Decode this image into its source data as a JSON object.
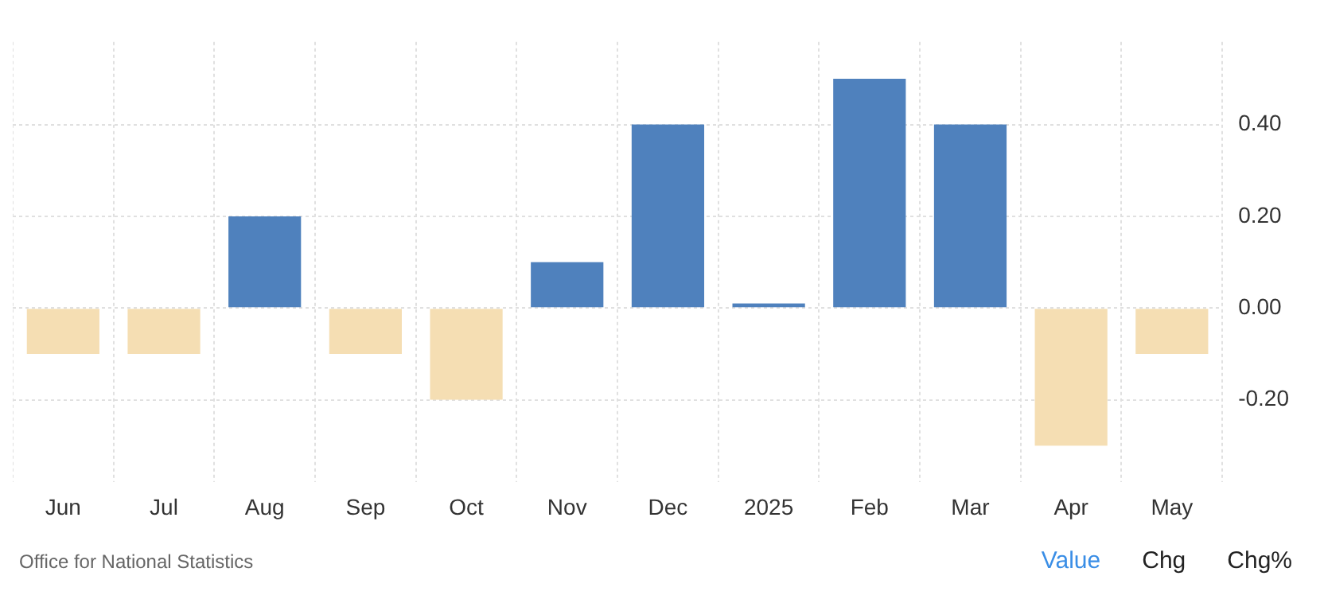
{
  "chart_data": {
    "type": "bar",
    "categories": [
      "Jun",
      "Jul",
      "Aug",
      "Sep",
      "Oct",
      "Nov",
      "Dec",
      "2025",
      "Feb",
      "Mar",
      "Apr",
      "May"
    ],
    "values": [
      -0.1,
      -0.1,
      0.2,
      -0.1,
      -0.2,
      0.1,
      0.4,
      0.01,
      0.5,
      0.4,
      -0.3,
      -0.1
    ],
    "colors": [
      "#f5deb3",
      "#f5deb3",
      "#4f81bd",
      "#f5deb3",
      "#f5deb3",
      "#4f81bd",
      "#4f81bd",
      "#4f81bd",
      "#4f81bd",
      "#4f81bd",
      "#f5deb3",
      "#f5deb3"
    ],
    "ylim": [
      -0.38,
      0.58
    ],
    "yticks": [
      {
        "value": -0.2,
        "label": "-0.20"
      },
      {
        "value": 0,
        "label": "0.00"
      },
      {
        "value": 0.2,
        "label": "0.20"
      },
      {
        "value": 0.4,
        "label": "0.40"
      }
    ],
    "grid": true,
    "annotations": [
      "Office for National Statistics",
      "Value",
      "Chg",
      "Chg%"
    ]
  }
}
